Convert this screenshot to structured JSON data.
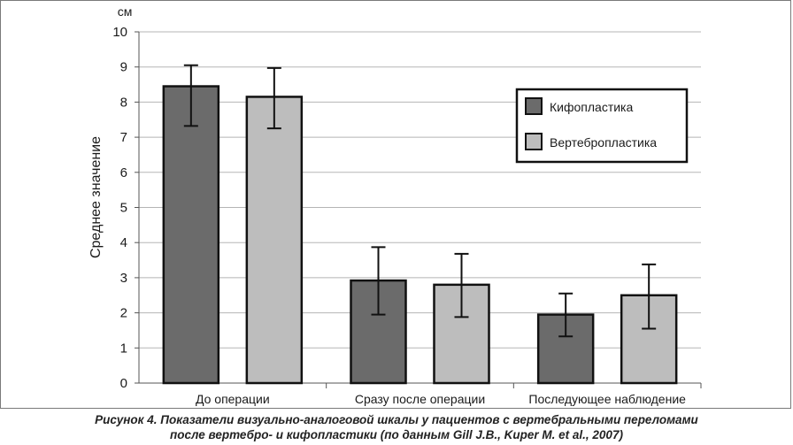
{
  "chart_data": {
    "type": "bar",
    "unit_label": "см",
    "ylabel": "Среднее значение",
    "xlabel": "",
    "ylim": [
      0,
      10
    ],
    "yticks": [
      0,
      1,
      2,
      3,
      4,
      5,
      6,
      7,
      8,
      9,
      10
    ],
    "grid": true,
    "categories": [
      "До операции",
      "Сразу после операции",
      "Последующее наблюдение"
    ],
    "series": [
      {
        "name": "Кифопластика",
        "color": "#6b6b6b",
        "values": [
          8.45,
          2.92,
          1.95
        ],
        "err_low": [
          7.32,
          1.95,
          1.33
        ],
        "err_high": [
          9.05,
          3.87,
          2.55
        ]
      },
      {
        "name": "Вертебропластика",
        "color": "#bdbdbd",
        "values": [
          8.15,
          2.8,
          2.5
        ],
        "err_low": [
          7.25,
          1.88,
          1.55
        ],
        "err_high": [
          8.97,
          3.68,
          3.38
        ]
      }
    ],
    "legend_position": "top-right"
  },
  "caption": {
    "line1": "Рисунок 4. Показатели визуально-аналоговой шкалы у пациентов с вертебральными переломами",
    "line2": "после вертебро- и кифопластики (по данным Gill J.B., Kuper M. et al., 2007)"
  }
}
